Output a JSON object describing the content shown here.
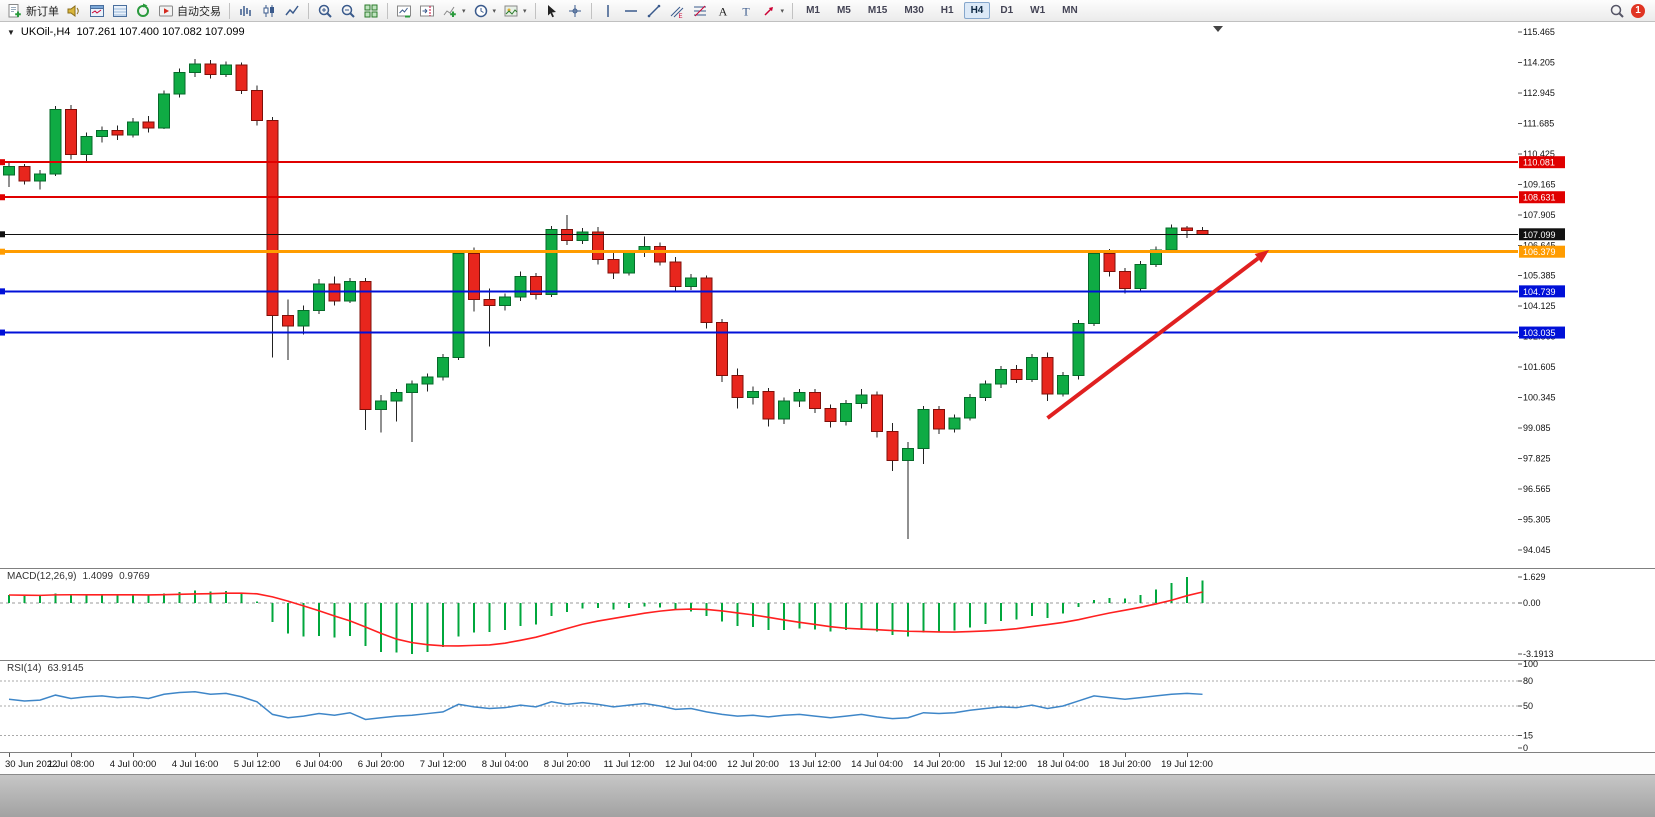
{
  "window": {
    "symbol_period": "UKOil-,H4",
    "ohlc": "107.261 107.400 107.082 107.099",
    "dropdown_marker": "▼"
  },
  "toolbar": {
    "items": [
      {
        "kind": "btn",
        "name": "new-order-button",
        "icon": "new-order-icon",
        "label": "新订单"
      },
      {
        "kind": "btn",
        "name": "sound-button",
        "icon": "sound-icon"
      },
      {
        "kind": "btn",
        "name": "market-watch-button",
        "icon": "market-watch-icon"
      },
      {
        "kind": "btn",
        "name": "data-window-button",
        "icon": "data-window-icon"
      },
      {
        "kind": "btn",
        "name": "strategy-tester-button",
        "icon": "strategy-tester-icon"
      },
      {
        "kind": "btn",
        "name": "autotrading-button",
        "icon": "autotrading-icon",
        "label": "自动交易"
      },
      {
        "kind": "sep"
      },
      {
        "kind": "btn",
        "name": "bar-chart-button",
        "icon": "bar-chart-icon"
      },
      {
        "kind": "btn",
        "name": "candlestick-chart-button",
        "icon": "candlestick-icon"
      },
      {
        "kind": "btn",
        "name": "line-chart-button",
        "icon": "line-chart-icon"
      },
      {
        "kind": "sep"
      },
      {
        "kind": "btn",
        "name": "zoom-in-button",
        "icon": "zoom-in-icon"
      },
      {
        "kind": "btn",
        "name": "zoom-out-button",
        "icon": "zoom-out-icon"
      },
      {
        "kind": "btn",
        "name": "tile-windows-button",
        "icon": "tile-windows-icon"
      },
      {
        "kind": "sep"
      },
      {
        "kind": "btn",
        "name": "auto-scroll-button",
        "icon": "auto-scroll-icon"
      },
      {
        "kind": "btn",
        "name": "chart-shift-button",
        "icon": "chart-shift-icon"
      },
      {
        "kind": "btn",
        "name": "indicators-button",
        "icon": "indicators-icon",
        "dropdown": true
      },
      {
        "kind": "btn",
        "name": "periods-button",
        "icon": "periods-icon",
        "dropdown": true
      },
      {
        "kind": "btn",
        "name": "templates-button",
        "icon": "templates-icon",
        "dropdown": true
      },
      {
        "kind": "sep"
      },
      {
        "kind": "btn",
        "name": "cursor-button",
        "icon": "cursor-icon"
      },
      {
        "kind": "btn",
        "name": "crosshair-button",
        "icon": "crosshair-icon"
      },
      {
        "kind": "sep"
      },
      {
        "kind": "btn",
        "name": "vertical-line-button",
        "icon": "vertical-line-icon"
      },
      {
        "kind": "btn",
        "name": "horizontal-line-button",
        "icon": "horizontal-line-icon"
      },
      {
        "kind": "btn",
        "name": "trendline-button",
        "icon": "trendline-icon"
      },
      {
        "kind": "btn",
        "name": "channel-button",
        "icon": "channel-icon"
      },
      {
        "kind": "btn",
        "name": "fibonacci-button",
        "icon": "fibonacci-icon"
      },
      {
        "kind": "btn",
        "name": "text-button",
        "icon": "text-icon"
      },
      {
        "kind": "btn",
        "name": "label-button",
        "icon": "label-icon"
      },
      {
        "kind": "btn",
        "name": "arrows-button",
        "icon": "arrows-icon",
        "dropdown": true
      },
      {
        "kind": "sep"
      }
    ],
    "timeframes": [
      {
        "label": "M1"
      },
      {
        "label": "M5"
      },
      {
        "label": "M15"
      },
      {
        "label": "M30"
      },
      {
        "label": "H1"
      },
      {
        "label": "H4",
        "active": true
      },
      {
        "label": "D1"
      },
      {
        "label": "W1"
      },
      {
        "label": "MN"
      }
    ],
    "search_icon": "search-icon",
    "notification_count": "1"
  },
  "chart_data": {
    "type": "candlestick",
    "symbol": "UKOil-",
    "timeframe": "H4",
    "title": "UKOil-,H4 107.261 107.400 107.082 107.099",
    "grid": false,
    "ylim": [
      94.045,
      115.465
    ],
    "price_axis": [
      "115.465",
      "114.205",
      "112.945",
      "111.685",
      "110.425",
      "109.165",
      "107.905",
      "106.645",
      "105.385",
      "104.125",
      "102.865",
      "101.605",
      "100.345",
      "99.085",
      "97.825",
      "96.565",
      "95.305",
      "94.045"
    ],
    "time_axis": [
      "30 Jun 2022",
      "1 Jul 08:00",
      "4 Jul 00:00",
      "4 Jul 16:00",
      "5 Jul 12:00",
      "6 Jul 04:00",
      "6 Jul 20:00",
      "7 Jul 12:00",
      "8 Jul 04:00",
      "8 Jul 20:00",
      "11 Jul 12:00",
      "12 Jul 04:00",
      "12 Jul 20:00",
      "13 Jul 12:00",
      "14 Jul 04:00",
      "14 Jul 20:00",
      "15 Jul 12:00",
      "18 Jul 04:00",
      "18 Jul 20:00",
      "19 Jul 12:00"
    ],
    "candles": [
      [
        109.55,
        110.1,
        109.05,
        109.9
      ],
      [
        109.9,
        110.0,
        109.15,
        109.3
      ],
      [
        109.3,
        109.75,
        108.95,
        109.6
      ],
      [
        109.6,
        112.4,
        109.5,
        112.25
      ],
      [
        112.25,
        112.45,
        110.2,
        110.4
      ],
      [
        110.4,
        111.3,
        110.1,
        111.15
      ],
      [
        111.15,
        111.55,
        110.9,
        111.4
      ],
      [
        111.4,
        111.6,
        111.0,
        111.2
      ],
      [
        111.2,
        111.9,
        111.1,
        111.75
      ],
      [
        111.75,
        112.0,
        111.3,
        111.5
      ],
      [
        111.5,
        113.05,
        111.45,
        112.9
      ],
      [
        112.9,
        113.95,
        112.75,
        113.8
      ],
      [
        113.8,
        114.35,
        113.6,
        114.15
      ],
      [
        114.15,
        114.3,
        113.55,
        113.7
      ],
      [
        113.7,
        114.25,
        113.6,
        114.1
      ],
      [
        114.1,
        114.2,
        112.9,
        113.05
      ],
      [
        113.05,
        113.25,
        111.6,
        111.8
      ],
      [
        111.8,
        111.95,
        102.0,
        103.75
      ],
      [
        103.75,
        104.4,
        101.9,
        103.3
      ],
      [
        103.3,
        104.15,
        102.95,
        103.95
      ],
      [
        103.95,
        105.25,
        103.8,
        105.05
      ],
      [
        105.05,
        105.35,
        104.15,
        104.35
      ],
      [
        104.35,
        105.3,
        104.25,
        105.15
      ],
      [
        105.15,
        105.3,
        99.0,
        99.85
      ],
      [
        99.85,
        100.45,
        98.9,
        100.2
      ],
      [
        100.2,
        100.7,
        99.35,
        100.55
      ],
      [
        100.55,
        101.05,
        98.5,
        100.9
      ],
      [
        100.9,
        101.35,
        100.6,
        101.2
      ],
      [
        101.2,
        102.15,
        101.05,
        102.0
      ],
      [
        102.0,
        106.45,
        101.9,
        106.3
      ],
      [
        106.3,
        106.55,
        103.9,
        104.4
      ],
      [
        104.4,
        104.85,
        102.45,
        104.15
      ],
      [
        104.15,
        104.65,
        103.95,
        104.5
      ],
      [
        104.5,
        105.55,
        104.35,
        105.35
      ],
      [
        105.35,
        105.5,
        104.4,
        104.6
      ],
      [
        104.6,
        107.45,
        104.5,
        107.3
      ],
      [
        107.3,
        107.9,
        106.65,
        106.85
      ],
      [
        106.85,
        107.35,
        106.7,
        107.2
      ],
      [
        107.2,
        107.4,
        105.85,
        106.05
      ],
      [
        106.05,
        106.45,
        105.25,
        105.5
      ],
      [
        105.5,
        106.45,
        105.4,
        106.35
      ],
      [
        106.35,
        107.0,
        106.15,
        106.6
      ],
      [
        106.6,
        106.75,
        105.8,
        105.95
      ],
      [
        105.95,
        106.15,
        104.75,
        104.95
      ],
      [
        104.95,
        105.45,
        104.8,
        105.3
      ],
      [
        105.3,
        105.4,
        103.2,
        103.45
      ],
      [
        103.45,
        103.6,
        101.0,
        101.25
      ],
      [
        101.25,
        101.55,
        99.9,
        100.35
      ],
      [
        100.35,
        100.8,
        100.05,
        100.6
      ],
      [
        100.6,
        100.75,
        99.15,
        99.45
      ],
      [
        99.45,
        100.35,
        99.25,
        100.2
      ],
      [
        100.2,
        100.7,
        99.95,
        100.55
      ],
      [
        100.55,
        100.7,
        99.7,
        99.9
      ],
      [
        99.9,
        100.05,
        99.1,
        99.35
      ],
      [
        99.35,
        100.25,
        99.2,
        100.1
      ],
      [
        100.1,
        100.7,
        99.9,
        100.45
      ],
      [
        100.45,
        100.6,
        98.7,
        98.95
      ],
      [
        98.95,
        99.3,
        97.3,
        97.75
      ],
      [
        97.75,
        98.5,
        94.5,
        98.25
      ],
      [
        98.25,
        100.0,
        97.6,
        99.85
      ],
      [
        99.85,
        100.0,
        98.85,
        99.05
      ],
      [
        99.05,
        99.65,
        98.9,
        99.5
      ],
      [
        99.5,
        100.5,
        99.4,
        100.35
      ],
      [
        100.35,
        101.05,
        100.2,
        100.9
      ],
      [
        100.9,
        101.65,
        100.75,
        101.5
      ],
      [
        101.5,
        101.7,
        100.95,
        101.1
      ],
      [
        101.1,
        102.15,
        101.0,
        102.0
      ],
      [
        102.0,
        102.2,
        100.2,
        100.5
      ],
      [
        100.5,
        101.4,
        100.4,
        101.25
      ],
      [
        101.25,
        103.55,
        101.1,
        103.4
      ],
      [
        103.4,
        106.45,
        103.3,
        106.3
      ],
      [
        106.3,
        106.5,
        105.35,
        105.55
      ],
      [
        105.55,
        105.7,
        104.65,
        104.85
      ],
      [
        104.85,
        106.0,
        104.75,
        105.85
      ],
      [
        105.85,
        106.6,
        105.75,
        106.45
      ],
      [
        106.45,
        107.5,
        106.35,
        107.35
      ],
      [
        107.35,
        107.45,
        106.95,
        107.26
      ],
      [
        107.261,
        107.4,
        107.082,
        107.099
      ]
    ],
    "lines": [
      {
        "label": "110.081",
        "price": 110.081,
        "color": "#e00000",
        "width": 2,
        "role": "resistance"
      },
      {
        "label": "108.631",
        "price": 108.631,
        "color": "#e00000",
        "width": 2,
        "role": "resistance"
      },
      {
        "label": "107.099",
        "price": 107.099,
        "color": "#111111",
        "width": 1,
        "role": "current-price"
      },
      {
        "label": "106.379",
        "price": 106.379,
        "color": "#ff9c00",
        "width": 3,
        "role": "pivot"
      },
      {
        "label": "104.739",
        "price": 104.739,
        "color": "#0010d8",
        "width": 2,
        "role": "support"
      },
      {
        "label": "103.035",
        "price": 103.035,
        "color": "#0010d8",
        "width": 2,
        "role": "support"
      }
    ],
    "arrow": {
      "from": {
        "index": 67,
        "price": 99.5
      },
      "to": {
        "index": 81.3,
        "price": 106.45
      },
      "color": "#e02020"
    },
    "indicators": {
      "macd": {
        "name": "MACD(12,26,9)",
        "value": "1.4099",
        "signal": "0.9769",
        "axis": [
          "1.629",
          "0.00",
          "-3.1913"
        ],
        "ylim": [
          -3.1913,
          1.629
        ],
        "hist_color": "#00a73c",
        "signal_color": "#ff2020",
        "histogram": [
          0.5,
          0.48,
          0.45,
          0.6,
          0.55,
          0.5,
          0.52,
          0.48,
          0.5,
          0.48,
          0.58,
          0.7,
          0.78,
          0.72,
          0.74,
          0.55,
          0.1,
          -1.2,
          -1.9,
          -2.1,
          -2.05,
          -2.15,
          -2.05,
          -2.7,
          -3.05,
          -3.1,
          -3.19,
          -3.05,
          -2.75,
          -2.1,
          -1.85,
          -1.8,
          -1.7,
          -1.45,
          -1.35,
          -0.8,
          -0.55,
          -0.35,
          -0.3,
          -0.4,
          -0.32,
          -0.22,
          -0.28,
          -0.45,
          -0.52,
          -0.8,
          -1.15,
          -1.45,
          -1.5,
          -1.7,
          -1.68,
          -1.6,
          -1.65,
          -1.78,
          -1.7,
          -1.62,
          -1.78,
          -2.0,
          -2.08,
          -1.85,
          -1.82,
          -1.72,
          -1.52,
          -1.32,
          -1.12,
          -1.02,
          -0.82,
          -0.95,
          -0.65,
          -0.25,
          0.2,
          0.3,
          0.28,
          0.5,
          0.85,
          1.25,
          1.629,
          1.4099
        ]
      },
      "rsi": {
        "name": "RSI(14)",
        "value": "63.9145",
        "axis": [
          "100",
          "80",
          "50",
          "15",
          "0"
        ],
        "levels": [
          80,
          50,
          15
        ],
        "ylim": [
          0,
          100
        ],
        "line_color": "#3e86c8",
        "values": [
          58,
          56,
          57,
          63,
          59,
          61,
          62,
          60,
          61,
          59,
          64,
          66,
          67,
          64,
          65,
          61,
          55,
          40,
          36,
          38,
          41,
          39,
          42,
          34,
          36,
          38,
          39,
          41,
          43,
          52,
          49,
          47,
          48,
          51,
          49,
          55,
          52,
          54,
          52,
          49,
          51,
          53,
          50,
          46,
          47,
          43,
          40,
          38,
          39,
          37,
          39,
          40,
          38,
          36,
          38,
          40,
          37,
          35,
          36,
          42,
          41,
          42,
          45,
          47,
          49,
          48,
          51,
          47,
          50,
          56,
          62,
          60,
          58,
          60,
          62,
          64,
          65,
          63.9145
        ]
      }
    },
    "colors": {
      "up": "#0fab44",
      "up_border": "#066a2a",
      "down": "#e8261d",
      "down_border": "#7e100a",
      "wick": "#222222"
    }
  }
}
